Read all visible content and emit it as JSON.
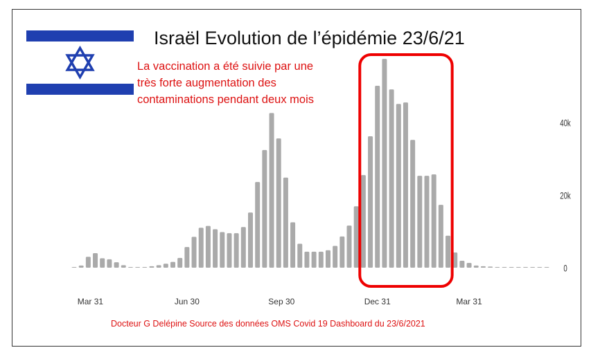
{
  "header": {
    "title": "Israël Evolution de l’épidémie 23/6/21",
    "flag_icon": "israel-flag-icon",
    "colors": {
      "flag_blue": "#1f3fb0",
      "annotation_red": "#dd1111"
    }
  },
  "annotation": {
    "lines": [
      "La vaccination a été suivie par une",
      "très forte augmentation des",
      "contaminations pendant deux mois"
    ]
  },
  "footer": {
    "text": "Docteur G Delépine Source des données OMS Covid 19 Dashboard du 23/6/2021"
  },
  "chart_data": {
    "type": "bar",
    "title": "Israël Evolution de l’épidémie 23/6/21",
    "xlabel": "",
    "ylabel": "",
    "ylim": [
      0,
      60000
    ],
    "yticks": [
      {
        "value": 0,
        "label": "0"
      },
      {
        "value": 20000,
        "label": "20k"
      },
      {
        "value": 40000,
        "label": "40k"
      }
    ],
    "y_axis_side": "right",
    "grid": false,
    "bar_color": "#aaaaaa",
    "xticks": [
      {
        "index": 2.3,
        "label": "Mar 31"
      },
      {
        "index": 16,
        "label": "Jun 30"
      },
      {
        "index": 29.4,
        "label": "Sep 30"
      },
      {
        "index": 43,
        "label": "Dec 31"
      },
      {
        "index": 56,
        "label": "Mar 31"
      }
    ],
    "highlight": {
      "from_index": 40.5,
      "to_index": 53.6,
      "color": "#ee0000"
    },
    "values": [
      100,
      600,
      3000,
      4000,
      2600,
      2300,
      1500,
      700,
      200,
      100,
      100,
      400,
      700,
      1100,
      1600,
      2700,
      5700,
      8500,
      11000,
      11500,
      10600,
      9800,
      9500,
      9500,
      11200,
      15200,
      23600,
      32400,
      42600,
      35600,
      24800,
      12500,
      6600,
      4400,
      4400,
      4400,
      4800,
      6000,
      8600,
      11600,
      16900,
      25500,
      36200,
      50100,
      57500,
      49100,
      45100,
      45500,
      35200,
      25300,
      25300,
      25700,
      17300,
      8800,
      4200,
      1900,
      1300,
      600,
      400,
      300,
      200,
      200,
      100,
      100,
      100,
      100,
      100,
      100
    ]
  }
}
